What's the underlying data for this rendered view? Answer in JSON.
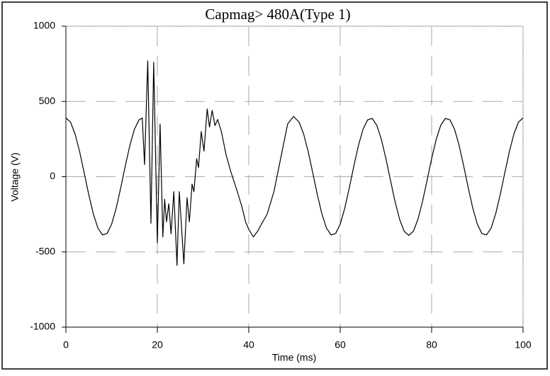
{
  "chart_data": {
    "type": "line",
    "title": "Capmag>  480A(Type 1)",
    "x_label": "Time (ms)",
    "y_label": "Voltage (V)",
    "xlim": [
      0,
      100
    ],
    "xticks": [
      0,
      20,
      40,
      60,
      80,
      100
    ],
    "ylim": [
      -1000,
      1000
    ],
    "yticks": [
      -1000,
      -500,
      0,
      500,
      1000
    ],
    "grid": true,
    "x": [
      0,
      1,
      2,
      3,
      4,
      5,
      6,
      7,
      8,
      9,
      10,
      11,
      12,
      13,
      14,
      15,
      16,
      16.7,
      17.2,
      17.9,
      18.6,
      19.2,
      20,
      20.6,
      21.2,
      21.6,
      22,
      22.5,
      23,
      23.6,
      24.3,
      24.8,
      25.8,
      26.5,
      27,
      27.6,
      28,
      28.6,
      29,
      29.6,
      30.2,
      30.9,
      31.4,
      32,
      32.6,
      33.2,
      34,
      35,
      36,
      37.5,
      38.5,
      39.3,
      40,
      41,
      42,
      42.5,
      44,
      45.5,
      46.5,
      47.5,
      48.5,
      49.8,
      51,
      52,
      53,
      54,
      55,
      56,
      57,
      58,
      59,
      60,
      61,
      62,
      63,
      64,
      65,
      66,
      67,
      68,
      69,
      70,
      71,
      72,
      73,
      74,
      75,
      76,
      77,
      78,
      79,
      80,
      81,
      82,
      83,
      84,
      85,
      86,
      87,
      88,
      89,
      90,
      91,
      92,
      93,
      94,
      95,
      96,
      97,
      98,
      99,
      100
    ],
    "series": [
      {
        "name": "Voltage",
        "color": "#000000",
        "values": [
          390,
          363,
          284,
          166,
          25,
          -120,
          -248,
          -342,
          -387,
          -378,
          -316,
          -209,
          -73,
          73,
          209,
          316,
          378,
          390,
          80,
          770,
          -310,
          760,
          -440,
          350,
          -400,
          -150,
          -300,
          -180,
          -380,
          -100,
          -590,
          -100,
          -580,
          -140,
          -300,
          -50,
          -100,
          120,
          60,
          300,
          170,
          450,
          330,
          440,
          340,
          380,
          300,
          150,
          40,
          -100,
          -200,
          -300,
          -350,
          -400,
          -360,
          -330,
          -250,
          -100,
          50,
          200,
          350,
          400,
          363,
          284,
          166,
          25,
          -120,
          -248,
          -342,
          -387,
          -378,
          -316,
          -209,
          -73,
          73,
          209,
          316,
          378,
          387,
          342,
          248,
          120,
          -25,
          -166,
          -284,
          -363,
          -390,
          -363,
          -284,
          -166,
          -25,
          120,
          248,
          342,
          387,
          378,
          316,
          209,
          73,
          -73,
          -209,
          -316,
          -378,
          -387,
          -342,
          -248,
          -120,
          25,
          166,
          284,
          363,
          390
        ]
      }
    ]
  }
}
